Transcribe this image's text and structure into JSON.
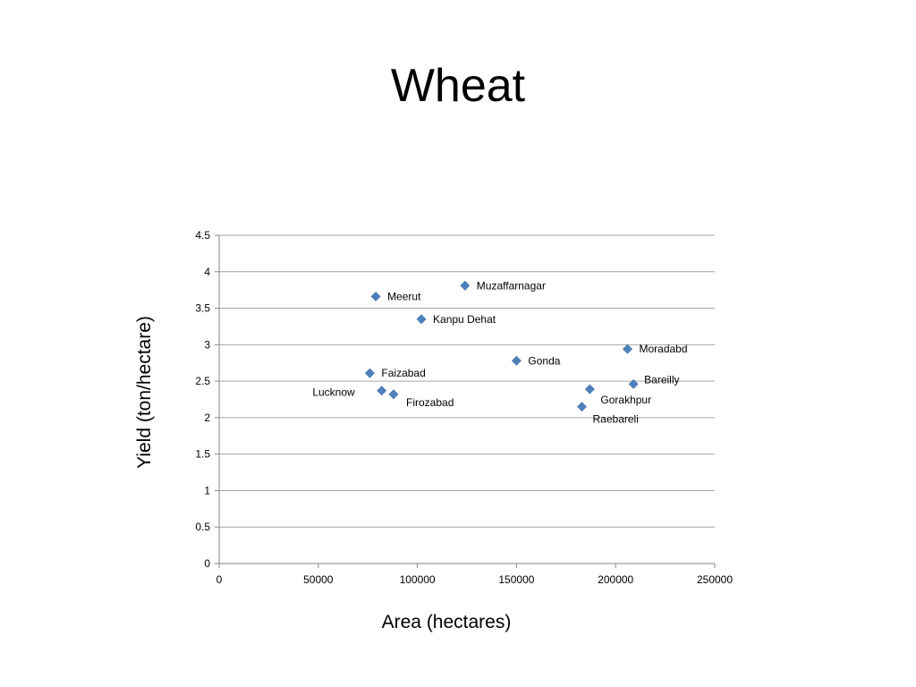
{
  "slide": {
    "title": "Wheat"
  },
  "chart_data": {
    "type": "scatter",
    "title": "Wheat",
    "xlabel": "Area (hectares)",
    "ylabel": "Yield (ton/hectare)",
    "xlim": [
      0,
      250000
    ],
    "ylim": [
      0,
      4.5
    ],
    "x_ticks": [
      0,
      50000,
      100000,
      150000,
      200000,
      250000
    ],
    "y_ticks": [
      0,
      0.5,
      1,
      1.5,
      2,
      2.5,
      3,
      3.5,
      4,
      4.5
    ],
    "grid": "horizontal",
    "marker": "diamond",
    "colors": {
      "marker": "#4f81bd",
      "gridline": "#a6a6a6",
      "axis": "#868686"
    },
    "points": [
      {
        "label": "Muzaffarnagar",
        "x": 124000,
        "y": 3.81
      },
      {
        "label": "Meerut",
        "x": 79000,
        "y": 3.66
      },
      {
        "label": "Kanpu Dehat",
        "x": 102000,
        "y": 3.35
      },
      {
        "label": "Moradabd",
        "x": 206000,
        "y": 2.94
      },
      {
        "label": "Gonda",
        "x": 150000,
        "y": 2.78
      },
      {
        "label": "Faizabad",
        "x": 76000,
        "y": 2.61
      },
      {
        "label": "Bareilly",
        "x": 209000,
        "y": 2.46
      },
      {
        "label": "Gorakhpur",
        "x": 187000,
        "y": 2.39
      },
      {
        "label": "Lucknow",
        "x": 82000,
        "y": 2.37
      },
      {
        "label": "Firozabad",
        "x": 88000,
        "y": 2.32
      },
      {
        "label": "Raebareli",
        "x": 183000,
        "y": 2.15
      }
    ]
  }
}
